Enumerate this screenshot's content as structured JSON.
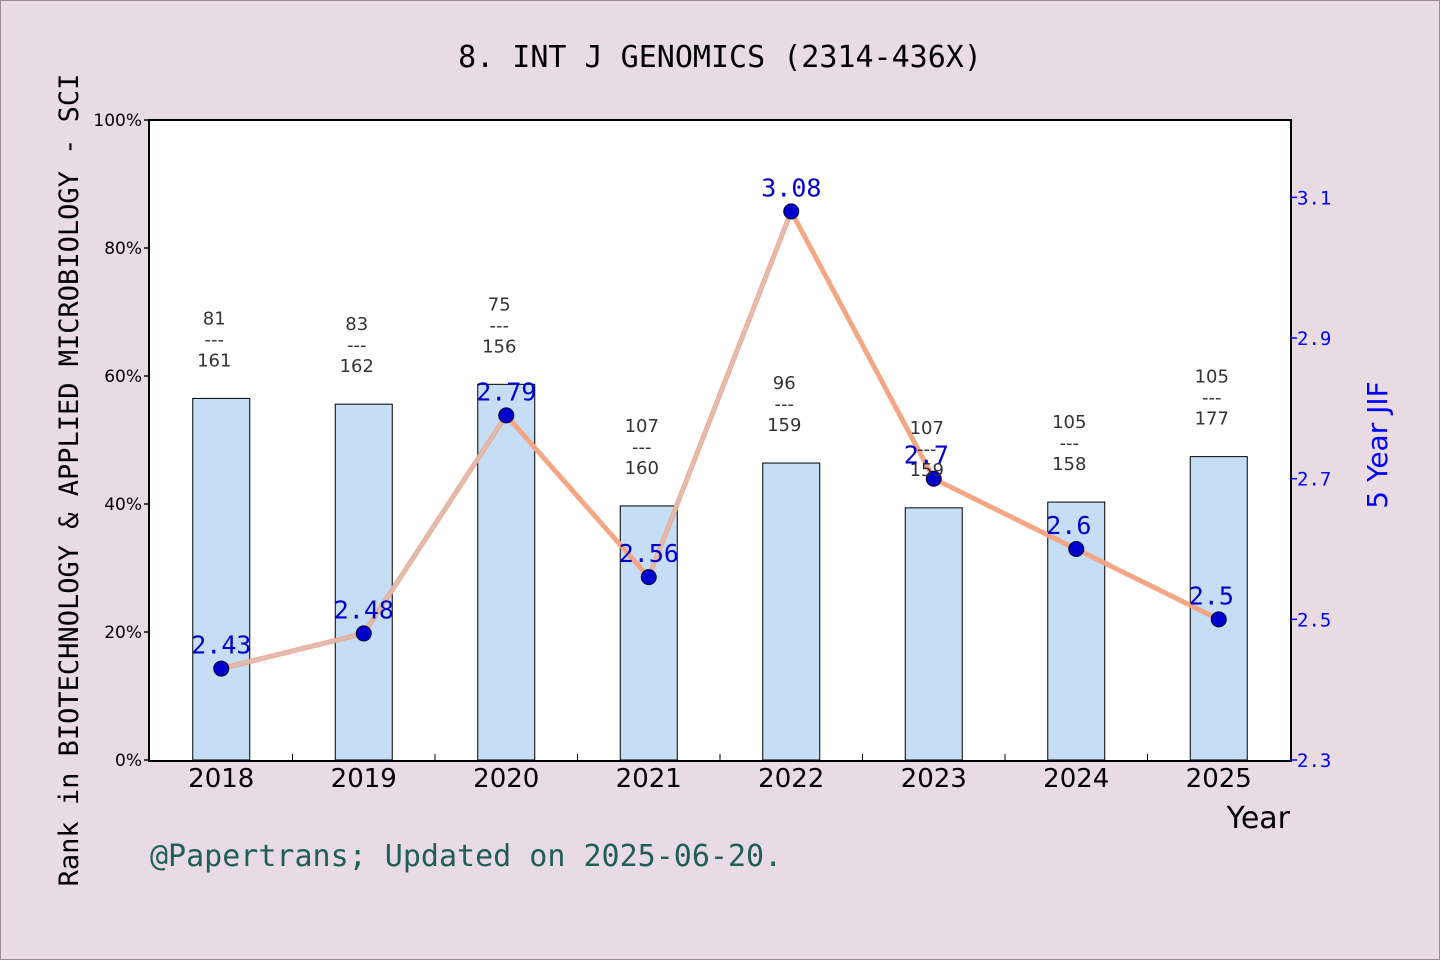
{
  "chart_data": {
    "type": "bar",
    "title": "8. INT J GENOMICS (2314-436X)",
    "xlabel": "Year",
    "ylabel_left": "Rank in BIOTECHNOLOGY & APPLIED MICROBIOLOGY - SCI",
    "ylabel_right": "5 Year JIF",
    "footer": "@Papertrans; Updated on 2025-06-20.",
    "categories": [
      "2018",
      "2019",
      "2020",
      "2021",
      "2022",
      "2023",
      "2024",
      "2025"
    ],
    "left_axis": {
      "ylim": [
        0,
        100
      ],
      "ticks": [
        "0%",
        "20%",
        "40%",
        "60%",
        "80%",
        "100%"
      ]
    },
    "right_axis": {
      "ylim": [
        2.3,
        3.21
      ],
      "ticks": [
        "2.3",
        "2.5",
        "2.7",
        "2.9",
        "3.1"
      ]
    },
    "series": [
      {
        "kind": "bar",
        "values_percent": [
          56.5,
          55.6,
          58.7,
          39.7,
          46.4,
          39.4,
          40.3,
          47.4
        ],
        "rank": [
          "81",
          "83",
          "75",
          "107",
          "96",
          "107",
          "105",
          "105"
        ],
        "total": [
          "161",
          "162",
          "156",
          "160",
          "159",
          "159",
          "158",
          "177"
        ],
        "separator": "---",
        "color": "#c5def5"
      },
      {
        "kind": "line",
        "values": [
          2.43,
          2.48,
          2.79,
          2.56,
          3.08,
          2.7,
          2.6,
          2.5
        ],
        "labels": [
          "2.43",
          "2.48",
          "2.79",
          "2.56",
          "3.08",
          "2.7",
          "2.6",
          "2.5"
        ],
        "color": "#f4a582",
        "marker_color": "#0000cc"
      }
    ],
    "grid": false,
    "colors": {
      "background": "#e9dbe3",
      "plot": "#ffffff",
      "right_axis": "#0000ff",
      "footer": "#1f5f55"
    }
  }
}
